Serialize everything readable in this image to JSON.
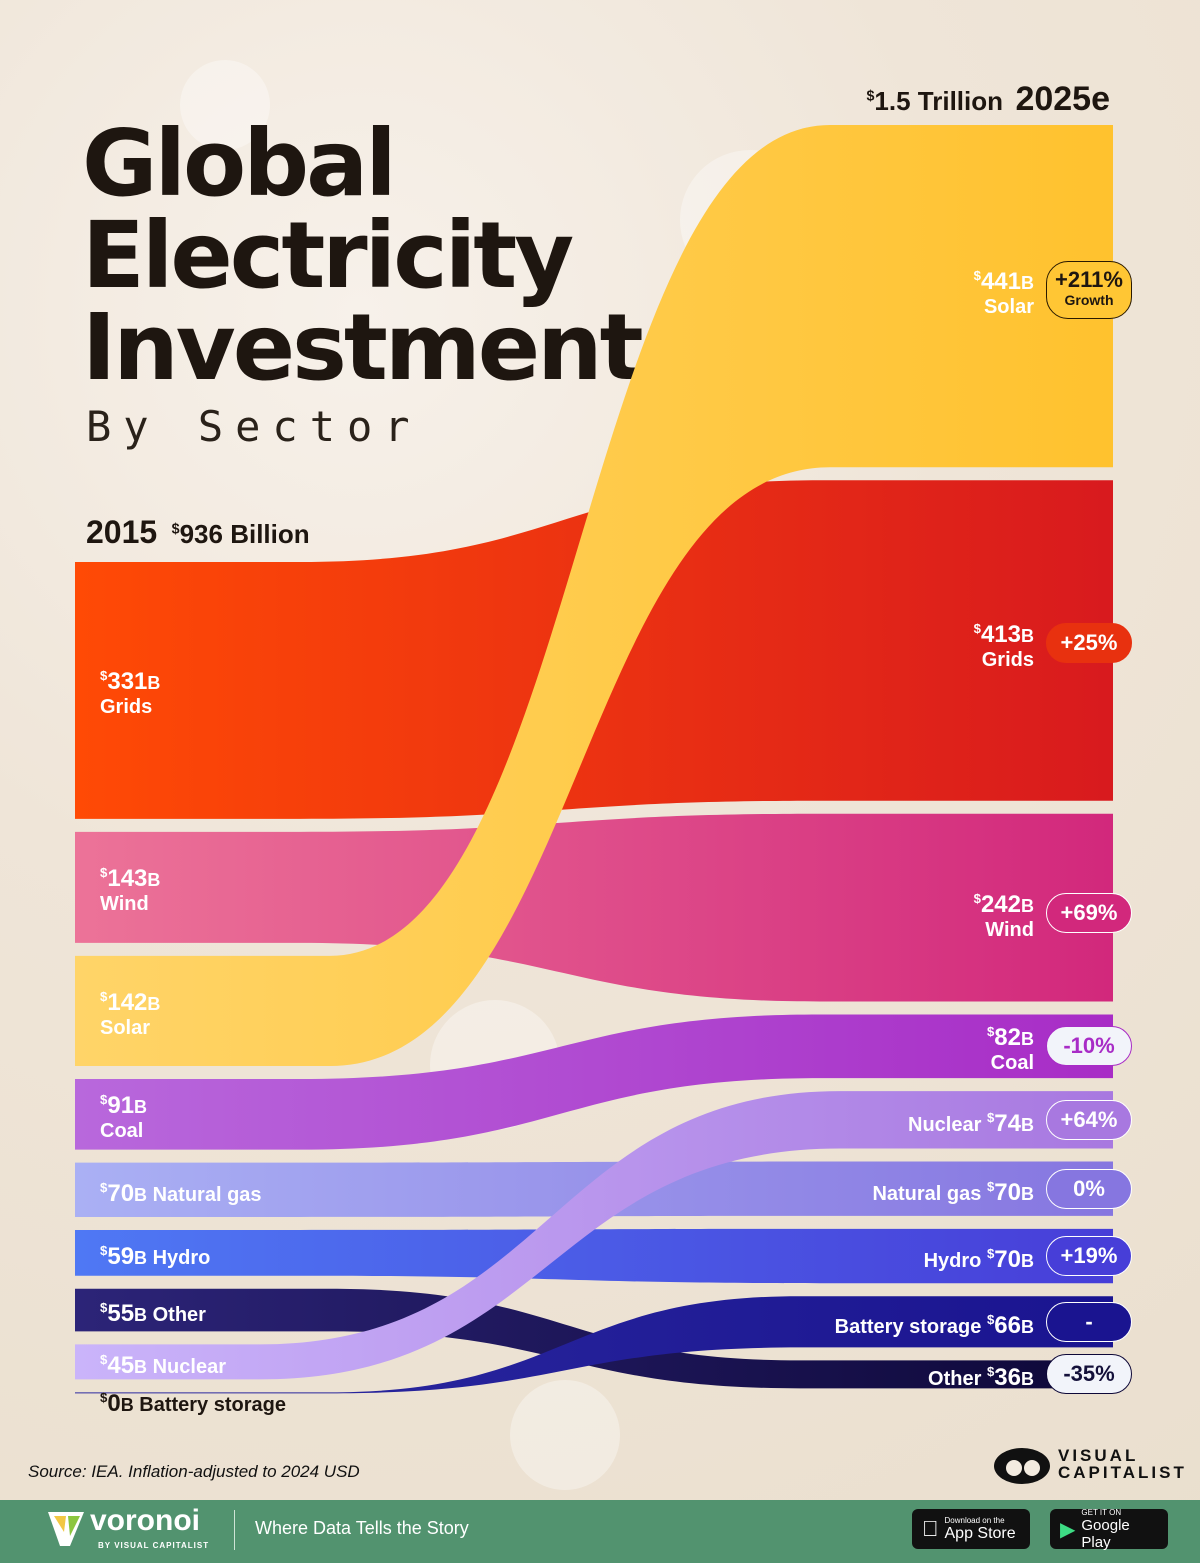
{
  "title_lines": [
    "Global",
    "Electricity",
    "Investment"
  ],
  "subtitle": "By Sector",
  "left_header": {
    "year": "2015",
    "total": "936 Billion"
  },
  "right_header": {
    "total": "1.5 Trillion",
    "year": "2025e"
  },
  "chart_data": {
    "type": "sankey",
    "units": "Billion USD (inflation-adjusted to 2024 USD)",
    "periods": [
      "2015",
      "2025e"
    ],
    "series": [
      {
        "name": "Grids",
        "v2015": 331,
        "v2025": 413,
        "change": "+25%",
        "c1": "#ff4a05",
        "c2": "#d81a1e"
      },
      {
        "name": "Wind",
        "v2015": 143,
        "v2025": 242,
        "change": "+69%",
        "c1": "#ec7398",
        "c2": "#d2287c"
      },
      {
        "name": "Solar",
        "v2015": 142,
        "v2025": 441,
        "change": "+211%",
        "c1": "#ffd468",
        "c2": "#ffc22e"
      },
      {
        "name": "Coal",
        "v2015": 91,
        "v2025": 82,
        "change": "-10%",
        "c1": "#b868dc",
        "c2": "#a82cc6"
      },
      {
        "name": "Natural gas",
        "v2015": 70,
        "v2025": 70,
        "change": "0%",
        "c1": "#aab0f4",
        "c2": "#8676e0"
      },
      {
        "name": "Hydro",
        "v2015": 59,
        "v2025": 70,
        "change": "+19%",
        "c1": "#4f78f4",
        "c2": "#473ed8"
      },
      {
        "name": "Other",
        "v2015": 55,
        "v2025": 36,
        "change": "-35%",
        "c1": "#2c2478",
        "c2": "#0e0838"
      },
      {
        "name": "Nuclear",
        "v2015": 45,
        "v2025": 74,
        "change": "+64%",
        "c1": "#cab4fa",
        "c2": "#a878e0"
      },
      {
        "name": "Battery storage",
        "v2015": 0,
        "v2025": 66,
        "change": "-",
        "c1": "#2c2aa0",
        "c2": "#1a1490"
      }
    ],
    "left_order": [
      "Grids",
      "Wind",
      "Solar",
      "Coal",
      "Natural gas",
      "Hydro",
      "Other",
      "Nuclear",
      "Battery storage"
    ],
    "right_order": [
      "Solar",
      "Grids",
      "Wind",
      "Coal",
      "Nuclear",
      "Natural gas",
      "Hydro",
      "Battery storage",
      "Other"
    ],
    "growth_label": "Growth"
  },
  "labels": {
    "left": [
      {
        "value": "331",
        "unit": "B",
        "name": "Grids"
      },
      {
        "value": "143",
        "unit": "B",
        "name": "Wind"
      },
      {
        "value": "142",
        "unit": "B",
        "name": "Solar"
      },
      {
        "value": "91",
        "unit": "B",
        "name": "Coal"
      },
      {
        "value": "70",
        "unit": "B",
        "name": "Natural gas"
      },
      {
        "value": "59",
        "unit": "B",
        "name": "Hydro"
      },
      {
        "value": "55",
        "unit": "B",
        "name": "Other"
      },
      {
        "value": "45",
        "unit": "B",
        "name": "Nuclear"
      },
      {
        "value": "0",
        "unit": "B",
        "name": "Battery storage"
      }
    ],
    "right": [
      {
        "value": "441",
        "unit": "B",
        "name": "Solar"
      },
      {
        "value": "413",
        "unit": "B",
        "name": "Grids"
      },
      {
        "value": "242",
        "unit": "B",
        "name": "Wind"
      },
      {
        "value": "82",
        "unit": "B",
        "name": "Coal"
      },
      {
        "value": "74",
        "unit": "B",
        "name": "Nuclear"
      },
      {
        "value": "70",
        "unit": "B",
        "name": "Natural gas"
      },
      {
        "value": "70",
        "unit": "B",
        "name": "Hydro"
      },
      {
        "value": "66",
        "unit": "B",
        "name": "Battery storage"
      },
      {
        "value": "36",
        "unit": "B",
        "name": "Other"
      }
    ]
  },
  "currency": "$",
  "source": "Source: IEA. Inflation-adjusted to 2024 USD",
  "brand": {
    "line1": "VISUAL",
    "line2": "CAPITALIST"
  },
  "footer": {
    "logo": "voronoi",
    "logo_sub": "BY VISUAL CAPITALIST",
    "tagline": "Where Data Tells the Story",
    "appstore_small": "Download on the",
    "appstore": "App Store",
    "gplay_small": "GET IT ON",
    "gplay": "Google Play"
  }
}
